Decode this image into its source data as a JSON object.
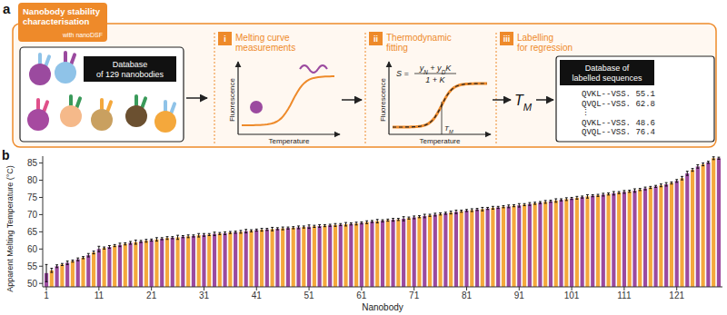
{
  "panel_a": {
    "label": "a",
    "header": {
      "title_lines": [
        "Nanobody stability",
        "characterisation"
      ],
      "subtitle": "with nanoDSF"
    },
    "input_label_lines": [
      "Database",
      "of 129 nanobodies"
    ],
    "steps": [
      {
        "number": "i",
        "title_lines": [
          "Melting curve",
          "measurements"
        ],
        "x_label": "Temperature",
        "y_label": "Fluorescence"
      },
      {
        "number": "ii",
        "title_lines": [
          "Thermodynamic",
          "fitting"
        ],
        "x_label": "Temperature",
        "y_label": "Fluorescence",
        "formula": {
          "lhs": "S =",
          "numerator": [
            {
              "text": "y"
            },
            {
              "text": "N",
              "sub": true
            },
            {
              "text": " + y"
            },
            {
              "text": "D",
              "sub": true
            },
            {
              "text": "K"
            }
          ],
          "denominator": "1 + K"
        },
        "marker": [
          {
            "text": "T"
          },
          {
            "text": "M",
            "sub": true
          }
        ]
      },
      {
        "number": "iii",
        "title_lines": [
          "Labelling",
          "for regression"
        ]
      }
    ],
    "result": [
      {
        "text": "T"
      },
      {
        "text": "M",
        "sub": true
      }
    ],
    "output_label_lines": [
      "Database of",
      "labelled sequences"
    ],
    "sequences": [
      "QVKL--VSS. 55.1",
      "QVQL--VSS. 62.8",
      "⋮",
      "QVKL--VSS. 48.6",
      "QVQL--VSS. 76.4"
    ]
  },
  "chart_data": {
    "type": "bar",
    "panel_label": "b",
    "x_label": "Nanobody",
    "y_label": "Apparent Melting Temperature (°C)",
    "x": [
      1,
      2,
      3,
      4,
      5,
      6,
      7,
      8,
      9,
      10,
      11,
      12,
      13,
      14,
      15,
      16,
      17,
      18,
      19,
      20,
      21,
      22,
      23,
      24,
      25,
      26,
      27,
      28,
      29,
      30,
      31,
      32,
      33,
      34,
      35,
      36,
      37,
      38,
      39,
      40,
      41,
      42,
      43,
      44,
      45,
      46,
      47,
      48,
      49,
      50,
      51,
      52,
      53,
      54,
      55,
      56,
      57,
      58,
      59,
      60,
      61,
      62,
      63,
      64,
      65,
      66,
      67,
      68,
      69,
      70,
      71,
      72,
      73,
      74,
      75,
      76,
      77,
      78,
      79,
      80,
      81,
      82,
      83,
      84,
      85,
      86,
      87,
      88,
      89,
      90,
      91,
      92,
      93,
      94,
      95,
      96,
      97,
      98,
      99,
      100,
      101,
      102,
      103,
      104,
      105,
      106,
      107,
      108,
      109,
      110,
      111,
      112,
      113,
      114,
      115,
      116,
      117,
      118,
      119,
      120,
      121,
      122,
      123,
      124,
      125,
      126,
      127,
      128,
      129
    ],
    "xlim": [
      0.3,
      129.7
    ],
    "xticks": [
      1,
      11,
      21,
      31,
      41,
      51,
      61,
      71,
      81,
      91,
      101,
      111,
      121
    ],
    "ylim": [
      49,
      87
    ],
    "yticks": [
      50,
      55,
      60,
      65,
      70,
      75,
      80,
      85
    ],
    "grid": false,
    "series": [
      {
        "values": [
          53,
          53.8,
          55,
          55.5,
          56,
          56.5,
          57,
          57.5,
          58.2,
          59,
          60,
          60.3,
          60.6,
          61,
          61.2,
          61.5,
          61.8,
          62,
          62.2,
          62.4,
          62.6,
          62.8,
          63,
          63.2,
          63.3,
          63.4,
          63.6,
          63.7,
          63.8,
          64,
          64.1,
          64.2,
          64.4,
          64.5,
          64.6,
          64.8,
          64.9,
          65,
          65.2,
          65.3,
          65.5,
          65.6,
          65.7,
          65.8,
          65.9,
          66,
          66.1,
          66.2,
          66.3,
          66.4,
          66.5,
          66.6,
          66.7,
          66.8,
          66.9,
          67,
          67.1,
          67.2,
          67.3,
          67.4,
          67.6,
          67.8,
          68,
          68.1,
          68.2,
          68.4,
          68.5,
          68.6,
          68.8,
          69,
          69.2,
          69.4,
          69.6,
          69.8,
          70,
          70.2,
          70.4,
          70.6,
          70.8,
          71,
          71.2,
          71.3,
          71.5,
          71.6,
          71.8,
          72,
          72.1,
          72.3,
          72.4,
          72.6,
          72.7,
          72.9,
          73.1,
          73.3,
          73.5,
          73.7,
          73.9,
          74.1,
          74.3,
          74.5,
          74.7,
          74.9,
          75.1,
          75.3,
          75.5,
          75.6,
          75.8,
          76,
          76.2,
          76.4,
          76.6,
          76.8,
          77,
          77.3,
          77.6,
          77.9,
          78.2,
          78.5,
          78.8,
          79.2,
          79.8,
          80.6,
          82,
          83,
          84,
          84.6,
          85.2,
          86.4,
          86.4
        ],
        "errors": [
          2.5,
          0.6,
          0.4,
          0.3,
          0.5,
          0.3,
          0.4,
          0.3,
          0.5,
          0.4,
          0.8,
          0.3,
          0.4,
          0.3,
          0.5,
          0.3,
          0.4,
          0.6,
          0.3,
          0.4,
          0.3,
          0.5,
          0.3,
          0.4,
          0.3,
          0.6,
          0.3,
          0.4,
          0.3,
          0.5,
          0.4,
          0.3,
          0.5,
          0.3,
          0.4,
          0.3,
          0.3,
          0.4,
          0.5,
          0.3,
          0.3,
          0.4,
          0.3,
          0.5,
          0.3,
          0.4,
          0.3,
          0.3,
          0.4,
          0.3,
          0.5,
          0.3,
          0.4,
          0.3,
          0.3,
          0.4,
          0.3,
          0.5,
          0.3,
          0.4,
          0.3,
          0.4,
          0.3,
          0.5,
          0.3,
          0.3,
          0.4,
          0.3,
          0.6,
          0.3,
          0.4,
          0.3,
          0.5,
          0.3,
          0.4,
          0.3,
          0.3,
          0.4,
          0.5,
          0.3,
          0.3,
          0.4,
          0.3,
          0.5,
          0.3,
          0.4,
          0.3,
          0.3,
          0.4,
          0.3,
          0.5,
          0.3,
          0.4,
          0.3,
          0.3,
          0.4,
          0.3,
          0.5,
          0.3,
          0.4,
          0.3,
          0.4,
          0.3,
          0.5,
          0.3,
          0.3,
          0.4,
          0.3,
          0.5,
          0.3,
          0.4,
          0.3,
          0.5,
          0.3,
          0.4,
          0.3,
          0.3,
          0.4,
          0.5,
          0.3,
          0.4,
          0.5,
          0.6,
          0.4,
          0.5,
          0.4,
          0.3,
          0.4,
          0.3
        ],
        "colors": [
          "#9b4a9f",
          "#f4a83c",
          "#9b4a9f",
          "#f4a83c",
          "#9b4a9f",
          "#f4a83c",
          "#9b4a9f",
          "#f4a83c",
          "#9b4a9f",
          "#f4a83c",
          "#9b4a9f",
          "#f4a83c",
          "#9b4a9f",
          "#f4a83c",
          "#9b4a9f",
          "#f4a83c",
          "#9b4a9f",
          "#f4a83c",
          "#9b4a9f",
          "#f4a83c",
          "#9b4a9f",
          "#f4a83c",
          "#9b4a9f",
          "#f4a83c",
          "#9b4a9f",
          "#f4a83c",
          "#9b4a9f",
          "#f4a83c",
          "#9b4a9f",
          "#f4a83c",
          "#9b4a9f",
          "#f4a83c",
          "#9b4a9f",
          "#f4a83c",
          "#9b4a9f",
          "#f4a83c",
          "#9b4a9f",
          "#f4a83c",
          "#9b4a9f",
          "#f4a83c",
          "#9b4a9f",
          "#f4a83c",
          "#9b4a9f",
          "#f4a83c",
          "#9b4a9f",
          "#f4a83c",
          "#9b4a9f",
          "#f4a83c",
          "#9b4a9f",
          "#f4a83c",
          "#9b4a9f",
          "#f4a83c",
          "#9b4a9f",
          "#f4a83c",
          "#9b4a9f",
          "#f4a83c",
          "#9b4a9f",
          "#f4a83c",
          "#9b4a9f",
          "#f4a83c",
          "#9b4a9f",
          "#f4a83c",
          "#9b4a9f",
          "#f4a83c",
          "#9b4a9f",
          "#f4a83c",
          "#9b4a9f",
          "#f4a83c",
          "#9b4a9f",
          "#f4a83c",
          "#9b4a9f",
          "#f4a83c",
          "#9b4a9f",
          "#f4a83c",
          "#9b4a9f",
          "#f4a83c",
          "#9b4a9f",
          "#f4a83c",
          "#9b4a9f",
          "#f4a83c",
          "#9b4a9f",
          "#f4a83c",
          "#9b4a9f",
          "#f4a83c",
          "#9b4a9f",
          "#f4a83c",
          "#9b4a9f",
          "#f4a83c",
          "#9b4a9f",
          "#f4a83c",
          "#9b4a9f",
          "#f4a83c",
          "#9b4a9f",
          "#f4a83c",
          "#9b4a9f",
          "#f4a83c",
          "#9b4a9f",
          "#f4a83c",
          "#9b4a9f",
          "#f4a83c",
          "#9b4a9f",
          "#f4a83c",
          "#9b4a9f",
          "#f4a83c",
          "#9b4a9f",
          "#f4a83c",
          "#9b4a9f",
          "#f4a83c",
          "#9b4a9f",
          "#f4a83c",
          "#9b4a9f",
          "#f4a83c",
          "#9b4a9f",
          "#f4a83c",
          "#9b4a9f",
          "#f4a83c",
          "#9b4a9f",
          "#f4a83c",
          "#9b4a9f",
          "#f4a83c",
          "#9b4a9f",
          "#f4a83c",
          "#9b4a9f",
          "#f4a83c",
          "#9b4a9f",
          "#f4a83c",
          "#9b4a9f",
          "#f4a83c",
          "#9b4a9f"
        ]
      }
    ]
  }
}
